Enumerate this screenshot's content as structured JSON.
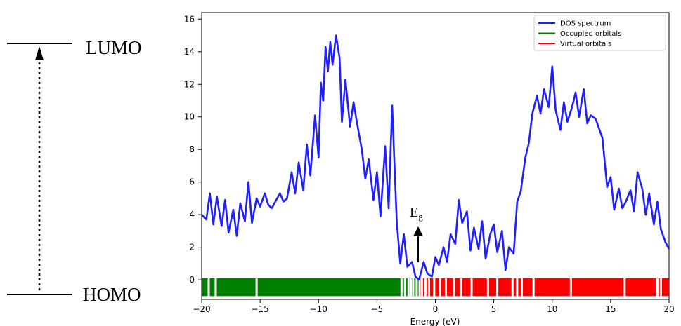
{
  "diagram": {
    "top_label": "LUMO",
    "bottom_label": "HOMO"
  },
  "annotation": {
    "gap_base": "E",
    "gap_sub": "g"
  },
  "chart_data": {
    "type": "line",
    "title": "",
    "xlabel": "Energy (eV)",
    "ylabel": "",
    "xlim": [
      -20,
      20
    ],
    "ylim": [
      -1.2,
      16.4
    ],
    "xticks": [
      -20,
      -15,
      -10,
      -5,
      0,
      5,
      10,
      15,
      20
    ],
    "yticks": [
      0,
      2,
      4,
      6,
      8,
      10,
      12,
      14,
      16
    ],
    "legend": {
      "position": "top-right",
      "entries": [
        {
          "label": "DOS spectrum",
          "color": "#1f1fff"
        },
        {
          "label": "Occupied orbitals",
          "color": "#008000"
        },
        {
          "label": "Virtual orbitals",
          "color": "#ff0000"
        }
      ]
    },
    "series": [
      {
        "name": "DOS spectrum",
        "color": "#1f1fff",
        "x": [
          -20,
          -19.6,
          -19.3,
          -19.0,
          -18.7,
          -18.3,
          -18.0,
          -17.7,
          -17.3,
          -17.0,
          -16.7,
          -16.3,
          -16.0,
          -15.7,
          -15.3,
          -15.0,
          -14.6,
          -14.3,
          -14.0,
          -13.7,
          -13.3,
          -13.0,
          -12.7,
          -12.3,
          -12.0,
          -11.7,
          -11.3,
          -11.0,
          -10.7,
          -10.3,
          -10.0,
          -9.8,
          -9.6,
          -9.4,
          -9.2,
          -9.0,
          -8.8,
          -8.5,
          -8.2,
          -8.0,
          -7.7,
          -7.3,
          -7.0,
          -6.7,
          -6.3,
          -6.0,
          -5.7,
          -5.3,
          -5.0,
          -4.7,
          -4.3,
          -4.0,
          -3.7,
          -3.3,
          -3.0,
          -2.7,
          -2.4,
          -2.0,
          -1.7,
          -1.4,
          -1.0,
          -0.7,
          -0.3,
          0.0,
          0.3,
          0.7,
          1.0,
          1.3,
          1.7,
          2.0,
          2.3,
          2.7,
          3.0,
          3.3,
          3.7,
          4.0,
          4.3,
          4.7,
          5.0,
          5.3,
          5.7,
          6.0,
          6.3,
          6.7,
          7.0,
          7.3,
          7.7,
          8.0,
          8.3,
          8.7,
          9.0,
          9.3,
          9.7,
          10.0,
          10.3,
          10.7,
          11.0,
          11.3,
          11.7,
          12.0,
          12.3,
          12.7,
          13.0,
          13.3,
          13.7,
          14.0,
          14.3,
          14.7,
          15.0,
          15.3,
          15.7,
          16.0,
          16.3,
          16.7,
          17.0,
          17.3,
          17.7,
          18.0,
          18.3,
          18.7,
          19.0,
          19.3,
          19.7,
          20.0
        ],
        "y": [
          4.0,
          3.7,
          5.3,
          3.4,
          5.1,
          3.3,
          4.9,
          2.9,
          4.3,
          2.7,
          4.7,
          3.6,
          6.0,
          3.5,
          5.0,
          4.5,
          5.3,
          4.6,
          4.4,
          4.8,
          5.3,
          4.8,
          5.0,
          6.6,
          5.3,
          7.2,
          5.5,
          8.3,
          6.4,
          10.1,
          7.5,
          12.1,
          11.0,
          14.3,
          12.8,
          14.6,
          13.2,
          15.0,
          13.6,
          9.7,
          12.3,
          9.4,
          10.9,
          9.6,
          8.0,
          6.2,
          7.4,
          4.9,
          6.6,
          3.9,
          8.2,
          4.4,
          10.7,
          3.5,
          1.0,
          2.8,
          0.8,
          1.1,
          0.2,
          0.0,
          1.1,
          0.4,
          0.2,
          1.4,
          0.9,
          2.0,
          1.1,
          2.8,
          2.2,
          4.9,
          3.5,
          4.2,
          1.8,
          3.2,
          1.9,
          3.6,
          1.3,
          2.8,
          3.4,
          1.7,
          3.0,
          0.6,
          2.0,
          1.6,
          4.8,
          5.4,
          7.5,
          8.4,
          10.2,
          11.3,
          10.2,
          11.7,
          10.6,
          13.1,
          10.4,
          9.2,
          10.9,
          9.7,
          10.6,
          11.5,
          10.0,
          11.7,
          9.6,
          10.1,
          9.9,
          9.3,
          8.7,
          5.7,
          6.3,
          4.3,
          5.6,
          4.4,
          4.8,
          5.5,
          4.2,
          6.6,
          5.6,
          4.0,
          5.3,
          3.4,
          4.8,
          3.1,
          2.3,
          1.9
        ]
      }
    ],
    "orbitals": {
      "occupied": {
        "range": [
          -20,
          -1.4
        ],
        "color": "#008000"
      },
      "virtual": {
        "range": [
          -1.4,
          20
        ],
        "color": "#ff0000"
      },
      "gaps": [
        -19.4,
        -18.8,
        -15.3,
        -2.9,
        -2.6,
        -2.3,
        -2.1,
        -1.9,
        -1.6,
        -1.35,
        -1.15,
        -0.85,
        -0.55,
        -0.1,
        0.4,
        0.9,
        1.6,
        2.2,
        3.1,
        4.5,
        5.3,
        6.6,
        7.0,
        7.4,
        8.4,
        11.6,
        16.2,
        19.0,
        19.3
      ]
    }
  }
}
